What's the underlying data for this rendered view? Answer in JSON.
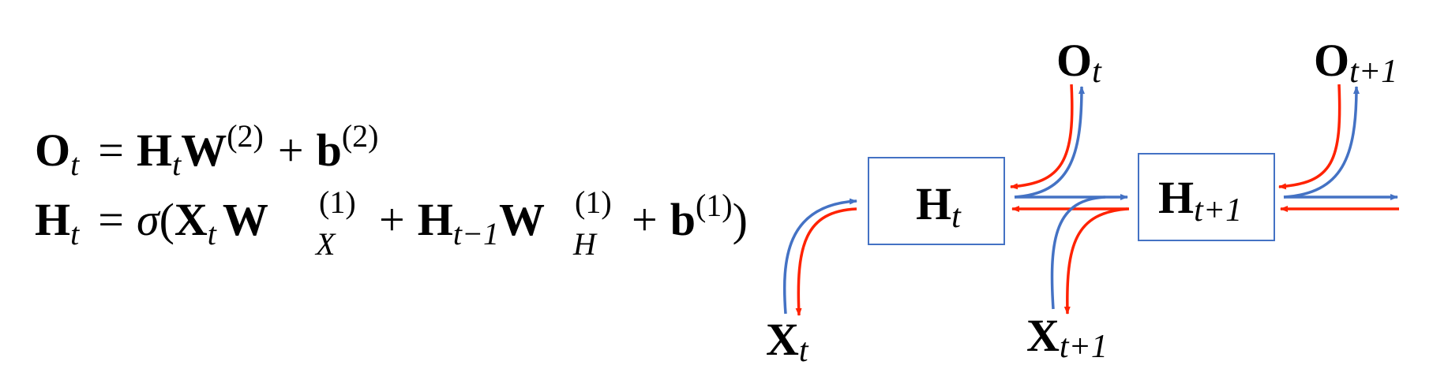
{
  "colors": {
    "forward": "#4472C4",
    "backward": "#FF2200",
    "box_border": "#4472C4",
    "text": "#000000"
  },
  "equations": {
    "output": {
      "lhs": "O",
      "lhs_sub": "t",
      "eq": "=",
      "h": "H",
      "h_sub": "t",
      "w": "W",
      "w_sup": "(2)",
      "plus": "+",
      "b": "b",
      "b_sup": "(2)"
    },
    "hidden": {
      "lhs": "H",
      "lhs_sub": "t",
      "eq": "=",
      "sigma": "σ",
      "lparen": "(",
      "x": "X",
      "x_sub": "t",
      "wx": "W",
      "wx_sup": "(1)",
      "wx_sub": "X",
      "plus1": "+",
      "hprev": "H",
      "hprev_sub": "t−1",
      "wh": "W",
      "wh_sup": "(1)",
      "wh_sub": "H",
      "plus2": "+",
      "b": "b",
      "b_sup": "(1)",
      "rparen": ")"
    }
  },
  "nodes": {
    "h_t": {
      "main": "H",
      "sub": "t"
    },
    "h_t1": {
      "main": "H",
      "sub": "t+1"
    },
    "o_t": {
      "main": "O",
      "sub": "t"
    },
    "o_t1": {
      "main": "O",
      "sub": "t+1"
    },
    "x_t": {
      "main": "X",
      "sub": "t"
    },
    "x_t1": {
      "main": "X",
      "sub": "t+1"
    }
  }
}
